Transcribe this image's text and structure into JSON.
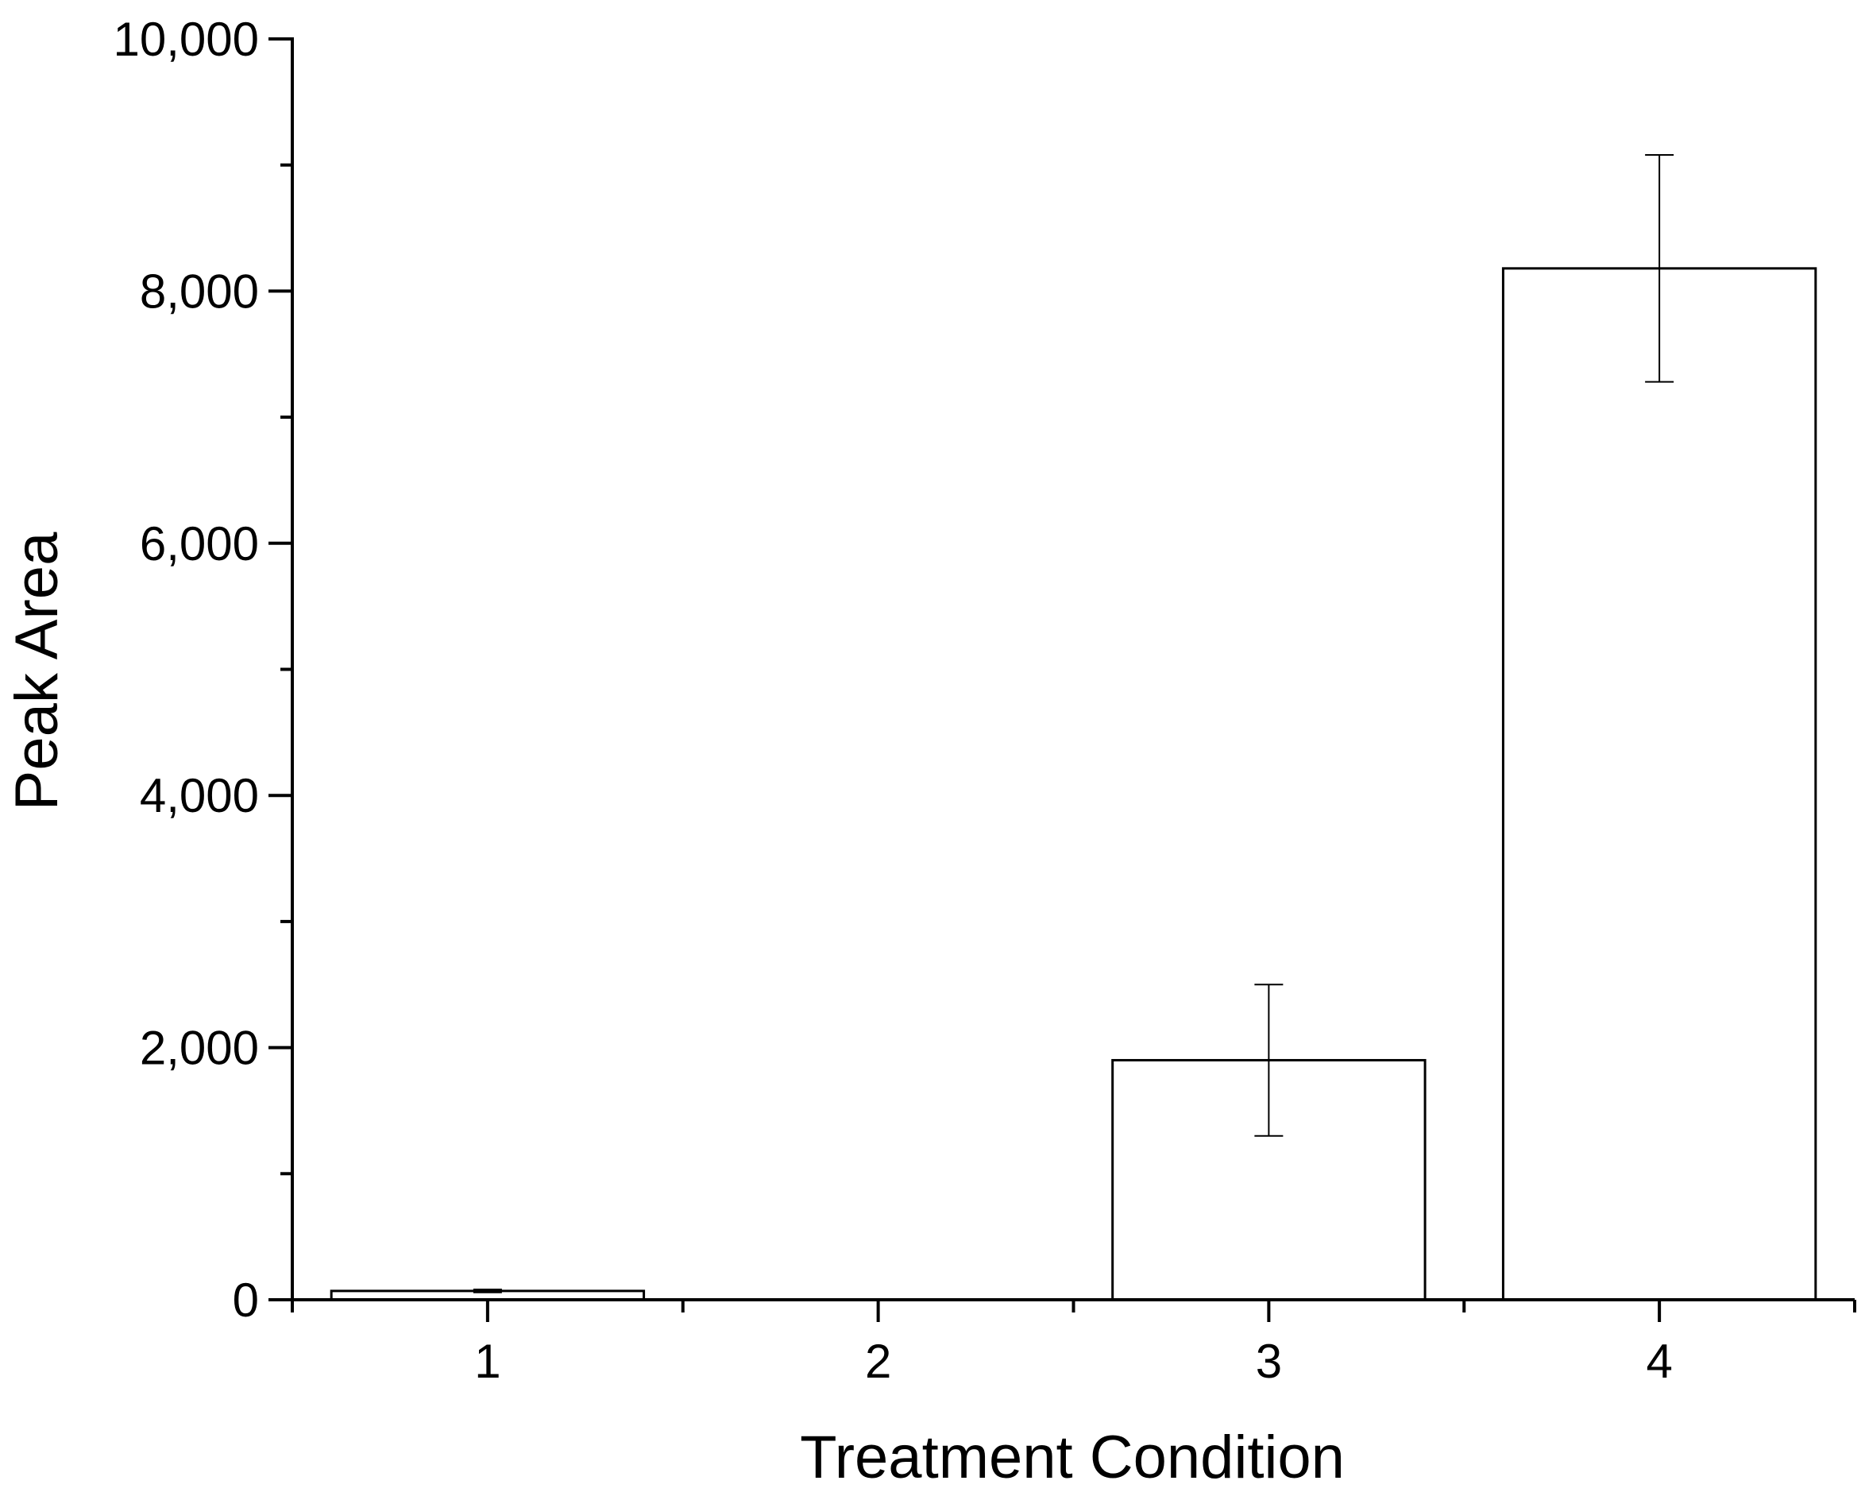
{
  "chart_data": {
    "type": "bar",
    "title": "",
    "xlabel": "Treatment Condition",
    "ylabel": "Peak Area",
    "categories": [
      "1",
      "2",
      "3",
      "4"
    ],
    "values": [
      70,
      0,
      1900,
      8180
    ],
    "error": [
      12,
      0,
      600,
      900
    ],
    "ylim": [
      0,
      10000
    ],
    "yticks": [
      0,
      2000,
      4000,
      6000,
      8000,
      10000
    ],
    "ytick_labels": [
      "0",
      "2,000",
      "4,000",
      "6,000",
      "8,000",
      "10,000"
    ],
    "yminor_step": 1000,
    "grid": false,
    "bar_fill": "#ffffff",
    "bar_stroke": "#000000"
  }
}
